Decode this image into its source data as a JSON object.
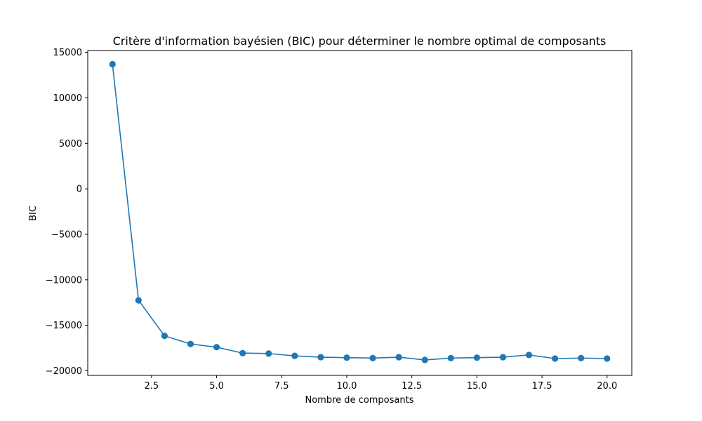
{
  "chart_data": {
    "type": "line",
    "title": "Critère d'information bayésien (BIC) pour déterminer le nombre optimal de composants",
    "xlabel": "Nombre de composants",
    "ylabel": "BIC",
    "xlim": [
      0.05,
      20.95
    ],
    "ylim": [
      -20500,
      15200
    ],
    "xticks": [
      2.5,
      5.0,
      7.5,
      10.0,
      12.5,
      15.0,
      17.5,
      20.0
    ],
    "xtick_labels": [
      "2.5",
      "5.0",
      "7.5",
      "10.0",
      "12.5",
      "15.0",
      "17.5",
      "20.0"
    ],
    "yticks": [
      15000,
      10000,
      5000,
      0,
      -5000,
      -10000,
      -15000,
      -20000
    ],
    "ytick_labels": [
      "15000",
      "10000",
      "5000",
      "0",
      "−5000",
      "−10000",
      "−15000",
      "−20000"
    ],
    "grid": false,
    "series": [
      {
        "name": "BIC",
        "color": "#1f77b4",
        "marker": "circle",
        "x": [
          1,
          2,
          3,
          4,
          5,
          6,
          7,
          8,
          9,
          10,
          11,
          12,
          13,
          14,
          15,
          16,
          17,
          18,
          19,
          20
        ],
        "values": [
          13700,
          -12250,
          -16150,
          -17050,
          -17400,
          -18050,
          -18100,
          -18350,
          -18500,
          -18550,
          -18600,
          -18500,
          -18800,
          -18600,
          -18550,
          -18500,
          -18250,
          -18650,
          -18600,
          -18650
        ]
      }
    ]
  }
}
